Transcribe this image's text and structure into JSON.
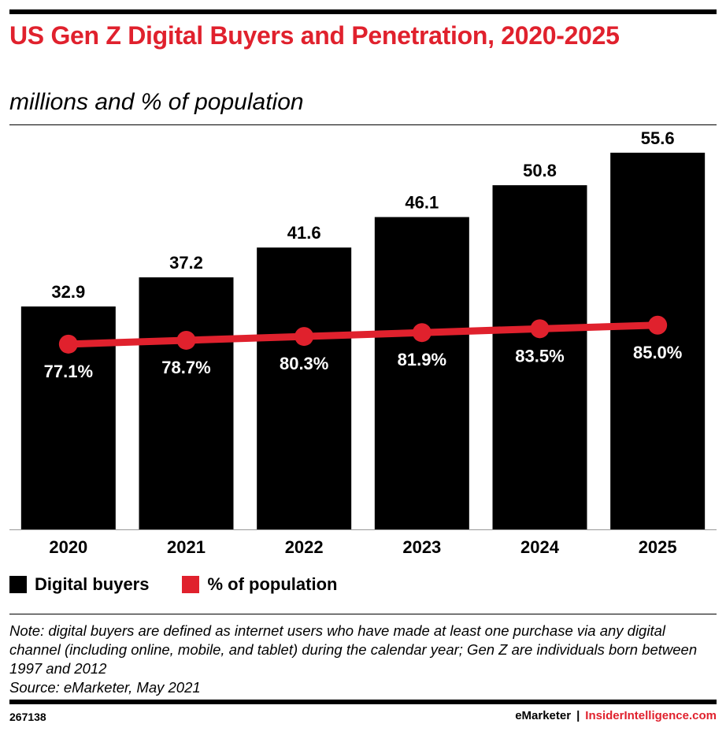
{
  "header": {
    "title": "US Gen Z Digital Buyers and Penetration, 2020-2025",
    "subtitle": "millions and % of population"
  },
  "legend": {
    "bars_label": "Digital buyers",
    "line_label": "% of population"
  },
  "note": {
    "text": "Note: digital buyers are defined as internet users who have made at least one purchase via any digital channel (including online, mobile, and tablet) during the calendar year; Gen Z are individuals born between 1997 and 2012",
    "source": "Source: eMarketer, May 2021"
  },
  "footer": {
    "chart_id": "267138",
    "brand_primary": "eMarketer",
    "separator": "|",
    "brand_secondary": "InsiderIntelligence.com"
  },
  "colors": {
    "bar": "#000000",
    "line": "#e0212d",
    "title": "#e0212d"
  },
  "chart_data": {
    "type": "bar",
    "title": "US Gen Z Digital Buyers and Penetration, 2020-2025",
    "categories": [
      "2020",
      "2021",
      "2022",
      "2023",
      "2024",
      "2025"
    ],
    "series": [
      {
        "name": "Digital buyers",
        "type": "bar",
        "unit": "millions",
        "values": [
          32.9,
          37.2,
          41.6,
          46.1,
          50.8,
          55.6
        ],
        "labels": [
          "32.9",
          "37.2",
          "41.6",
          "46.1",
          "50.8",
          "55.6"
        ]
      },
      {
        "name": "% of population",
        "type": "line",
        "unit": "%",
        "values": [
          77.1,
          78.7,
          80.3,
          81.9,
          83.5,
          85.0
        ],
        "labels": [
          "77.1%",
          "78.7%",
          "80.3%",
          "81.9%",
          "83.5%",
          "85.0%"
        ]
      }
    ],
    "ylim_bars": [
      0,
      60
    ],
    "ylim_line": [
      0,
      145
    ],
    "xlabel": "",
    "ylabel": "",
    "grid": false,
    "legend": "bottom-left"
  }
}
